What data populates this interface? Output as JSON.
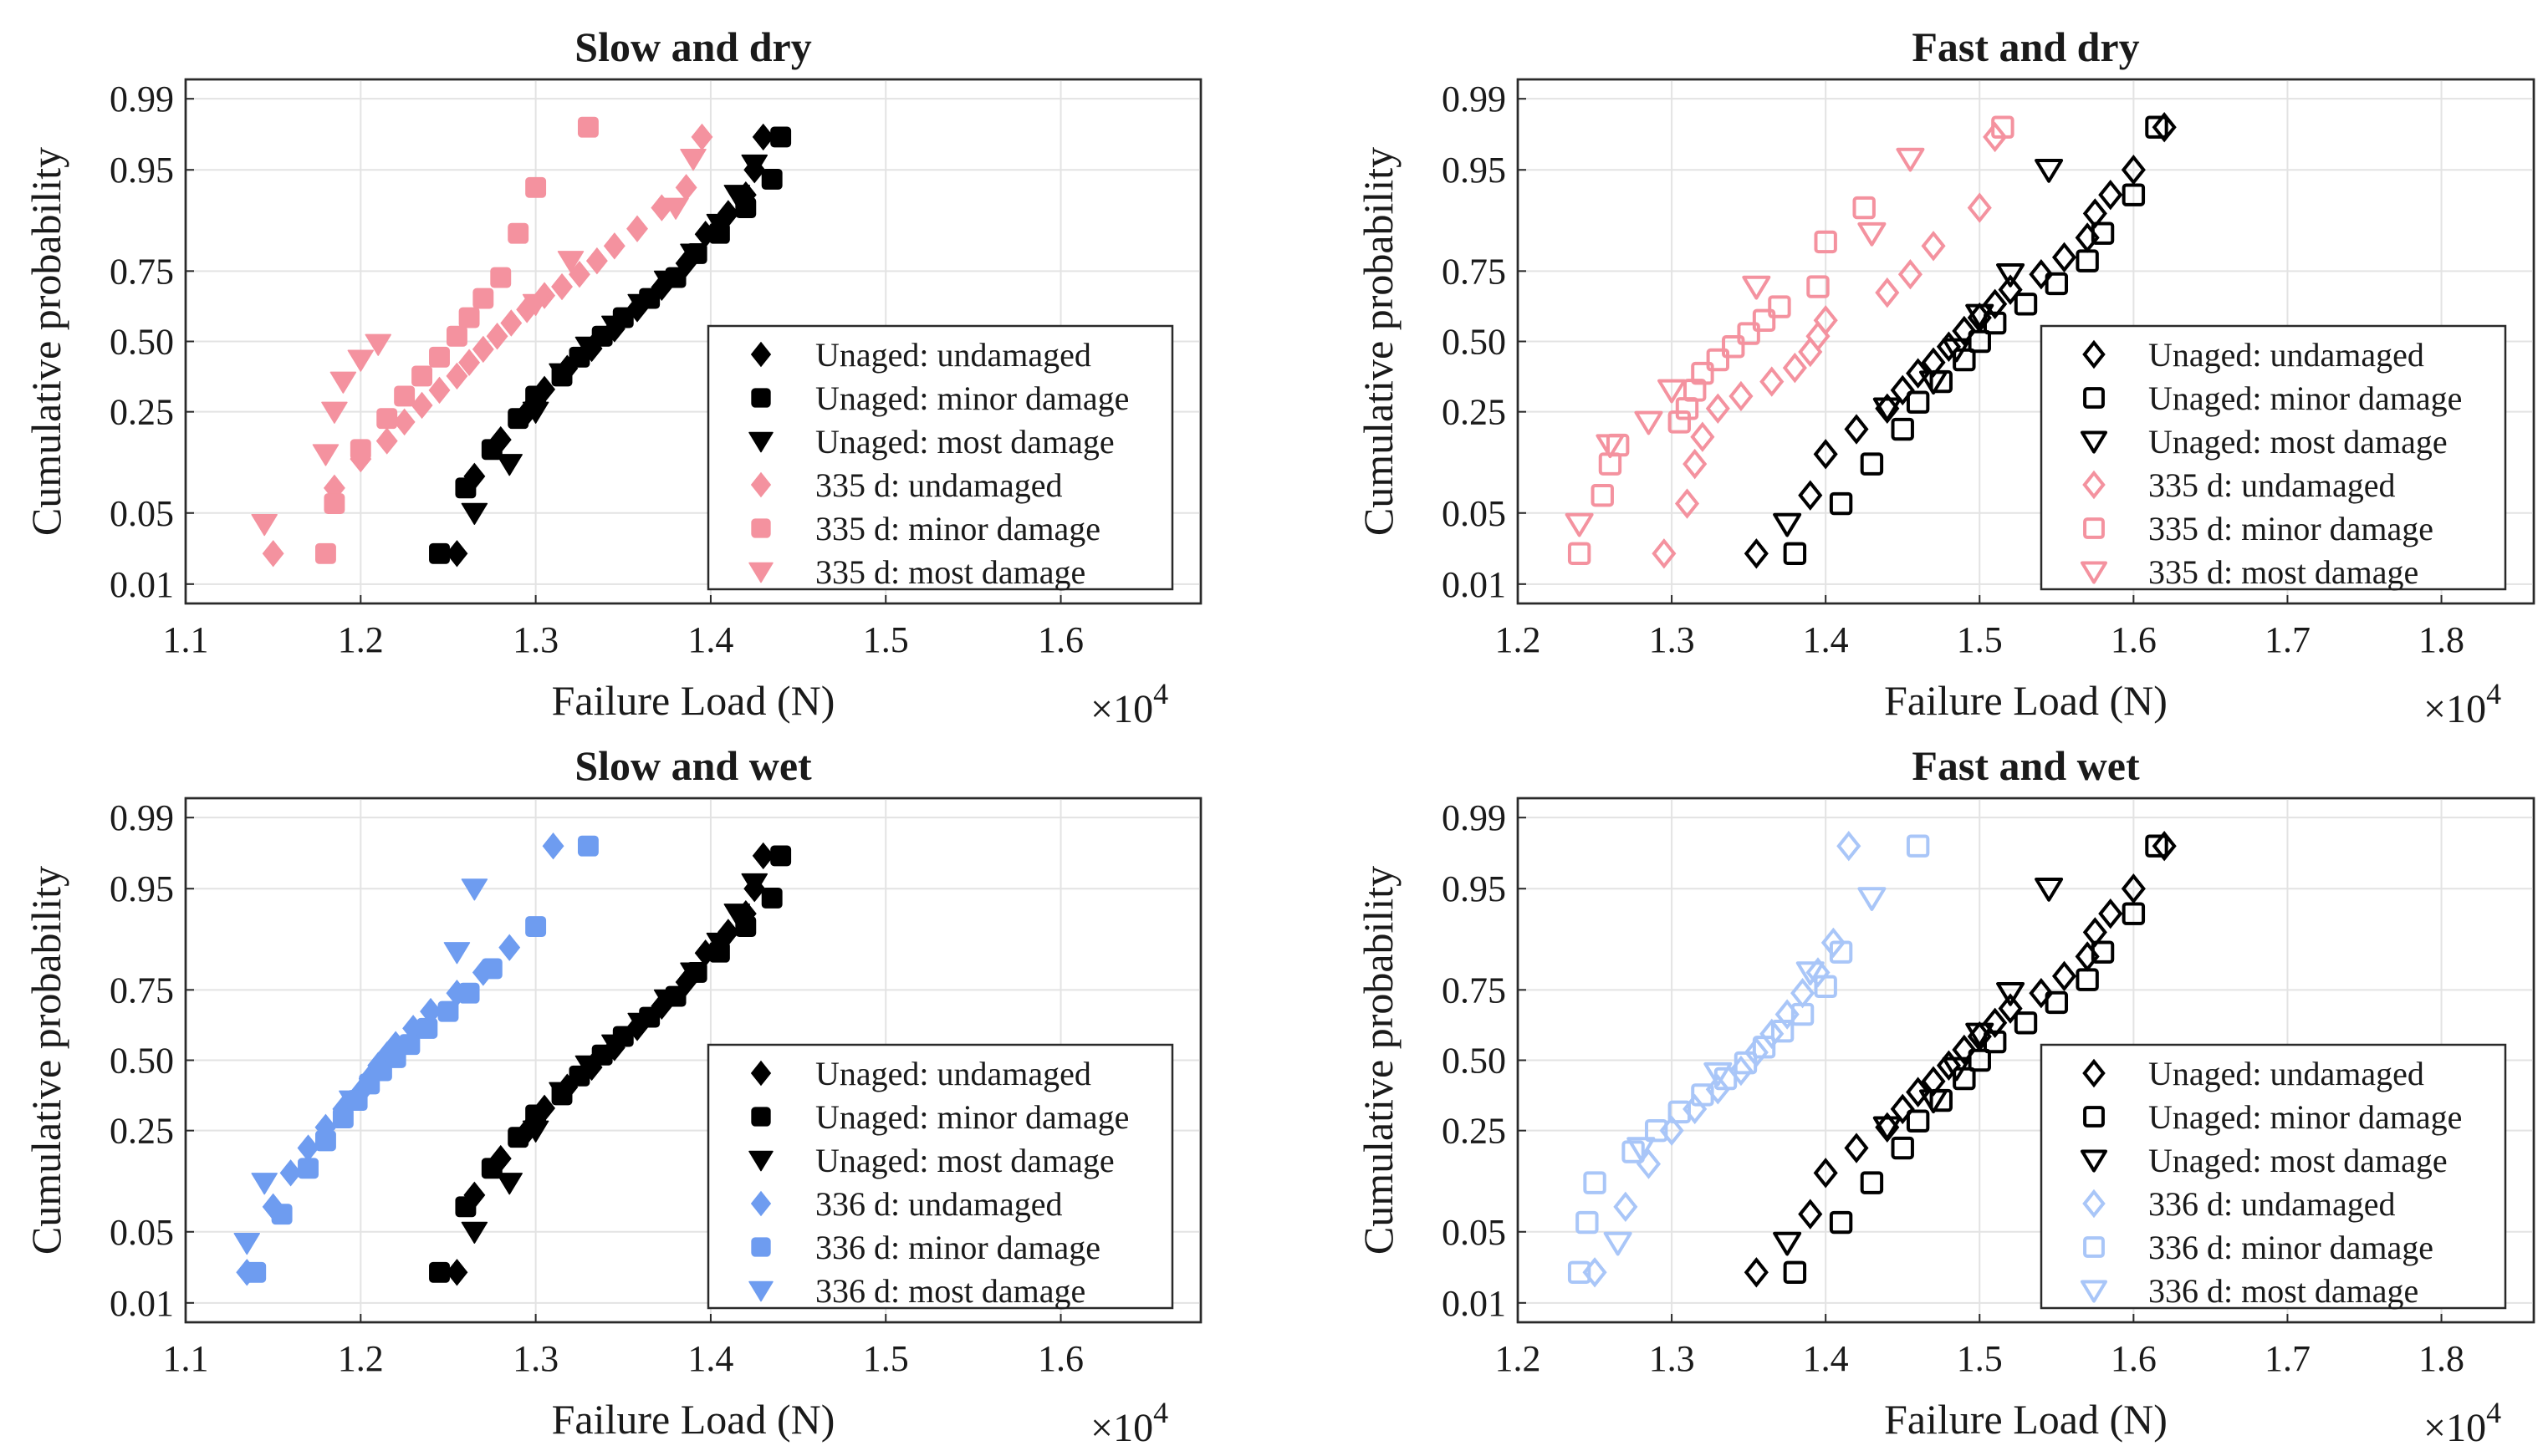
{
  "figure": {
    "multiplier_base": "×10",
    "multiplier_exp": "4"
  },
  "chart_data": [
    {
      "type": "scatter",
      "title": "Slow and dry",
      "xlabel": "Failure Load (N)",
      "ylabel": "Cumulative probability",
      "xlim": [
        1.1,
        1.68
      ],
      "xticks": [
        "1.1",
        "1.2",
        "1.3",
        "1.4",
        "1.5",
        "1.6"
      ],
      "yticks": [
        "0.01",
        "0.05",
        "0.25",
        "0.50",
        "0.75",
        "0.95",
        "0.99"
      ],
      "multiplier": "×10^4",
      "legend_position": "lower-right",
      "filled": true,
      "series": [
        {
          "name": "Unaged: undamaged",
          "color": "#000000",
          "marker": "diamond",
          "x": [
            1.255,
            1.265,
            1.28,
            1.295,
            1.305,
            1.318,
            1.332,
            1.345,
            1.358,
            1.372,
            1.386,
            1.397,
            1.41,
            1.42,
            1.425,
            1.43
          ],
          "y": [
            0.021,
            0.098,
            0.173,
            0.248,
            0.323,
            0.398,
            0.473,
            0.548,
            0.623,
            0.698,
            0.773,
            0.848,
            0.89,
            0.92,
            0.95,
            0.975
          ]
        },
        {
          "name": "Unaged: minor damage",
          "color": "#000000",
          "marker": "square",
          "x": [
            1.245,
            1.26,
            1.275,
            1.29,
            1.3,
            1.315,
            1.325,
            1.338,
            1.35,
            1.365,
            1.38,
            1.392,
            1.405,
            1.42,
            1.435,
            1.44
          ],
          "y": [
            0.021,
            0.08,
            0.15,
            0.23,
            0.3,
            0.37,
            0.44,
            0.52,
            0.59,
            0.66,
            0.73,
            0.8,
            0.85,
            0.9,
            0.94,
            0.975
          ]
        },
        {
          "name": "Unaged: most damage",
          "color": "#000000",
          "marker": "triangle-down",
          "x": [
            1.265,
            1.285,
            1.3,
            1.315,
            1.33,
            1.345,
            1.36,
            1.375,
            1.39,
            1.405,
            1.415,
            1.425
          ],
          "y": [
            0.05,
            0.12,
            0.25,
            0.38,
            0.48,
            0.56,
            0.64,
            0.72,
            0.8,
            0.87,
            0.92,
            0.955
          ]
        },
        {
          "name": "335 d: undamaged",
          "color": "#f4929f",
          "marker": "diamond",
          "x": [
            1.15,
            1.185,
            1.2,
            1.215,
            1.225,
            1.235,
            1.245,
            1.255,
            1.262,
            1.27,
            1.278,
            1.286,
            1.295,
            1.305,
            1.315,
            1.325,
            1.335,
            1.345,
            1.358,
            1.372,
            1.386,
            1.395
          ],
          "y": [
            0.021,
            0.08,
            0.13,
            0.17,
            0.22,
            0.27,
            0.32,
            0.37,
            0.42,
            0.47,
            0.52,
            0.57,
            0.62,
            0.67,
            0.7,
            0.74,
            0.78,
            0.82,
            0.86,
            0.9,
            0.93,
            0.975
          ]
        },
        {
          "name": "335 d: minor damage",
          "color": "#f4929f",
          "marker": "square",
          "x": [
            1.18,
            1.185,
            1.2,
            1.215,
            1.225,
            1.235,
            1.245,
            1.255,
            1.262,
            1.27,
            1.28,
            1.29,
            1.3,
            1.33
          ],
          "y": [
            0.021,
            0.06,
            0.15,
            0.23,
            0.3,
            0.37,
            0.44,
            0.52,
            0.59,
            0.66,
            0.73,
            0.85,
            0.93,
            0.98
          ]
        },
        {
          "name": "335 d: most damage",
          "color": "#f4929f",
          "marker": "triangle-down",
          "x": [
            1.145,
            1.18,
            1.185,
            1.19,
            1.2,
            1.21,
            1.3,
            1.32,
            1.38,
            1.39
          ],
          "y": [
            0.04,
            0.14,
            0.25,
            0.35,
            0.43,
            0.49,
            0.64,
            0.78,
            0.9,
            0.96
          ]
        }
      ]
    },
    {
      "type": "scatter",
      "title": "Fast and dry",
      "xlabel": "Failure Load (N)",
      "ylabel": "Cumulative probability",
      "xlim": [
        1.2,
        1.86
      ],
      "xticks": [
        "1.2",
        "1.3",
        "1.4",
        "1.5",
        "1.6",
        "1.7",
        "1.8"
      ],
      "yticks": [
        "0.01",
        "0.05",
        "0.25",
        "0.50",
        "0.75",
        "0.95",
        "0.99"
      ],
      "multiplier": "×10^4",
      "legend_position": "lower-right",
      "filled": false,
      "series": [
        {
          "name": "Unaged: undamaged",
          "color": "#000000",
          "marker": "diamond",
          "x": [
            1.355,
            1.39,
            1.4,
            1.42,
            1.44,
            1.45,
            1.46,
            1.47,
            1.48,
            1.49,
            1.5,
            1.51,
            1.52,
            1.54,
            1.555,
            1.57,
            1.575,
            1.585,
            1.6,
            1.62
          ],
          "y": [
            0.021,
            0.07,
            0.14,
            0.2,
            0.26,
            0.32,
            0.38,
            0.42,
            0.48,
            0.54,
            0.59,
            0.64,
            0.69,
            0.74,
            0.79,
            0.84,
            0.89,
            0.92,
            0.95,
            0.98
          ]
        },
        {
          "name": "Unaged: minor damage",
          "color": "#000000",
          "marker": "square",
          "x": [
            1.38,
            1.41,
            1.43,
            1.45,
            1.46,
            1.475,
            1.49,
            1.5,
            1.51,
            1.53,
            1.55,
            1.57,
            1.58,
            1.6,
            1.615
          ],
          "y": [
            0.021,
            0.06,
            0.12,
            0.2,
            0.28,
            0.35,
            0.43,
            0.5,
            0.57,
            0.64,
            0.71,
            0.78,
            0.85,
            0.92,
            0.98
          ]
        },
        {
          "name": "Unaged: most damage",
          "color": "#000000",
          "marker": "triangle-down",
          "x": [
            1.375,
            1.44,
            1.47,
            1.485,
            1.5,
            1.52,
            1.545
          ],
          "y": [
            0.04,
            0.26,
            0.35,
            0.47,
            0.6,
            0.74,
            0.95
          ]
        },
        {
          "name": "335 d: undamaged",
          "color": "#f4929f",
          "marker": "diamond",
          "x": [
            1.295,
            1.31,
            1.315,
            1.32,
            1.33,
            1.345,
            1.365,
            1.38,
            1.39,
            1.395,
            1.4,
            1.44,
            1.455,
            1.47,
            1.5,
            1.51
          ],
          "y": [
            0.021,
            0.06,
            0.12,
            0.18,
            0.26,
            0.3,
            0.35,
            0.4,
            0.46,
            0.52,
            0.58,
            0.68,
            0.74,
            0.82,
            0.9,
            0.975
          ]
        },
        {
          "name": "335 d: minor damage",
          "color": "#f4929f",
          "marker": "square",
          "x": [
            1.24,
            1.255,
            1.26,
            1.265,
            1.305,
            1.31,
            1.315,
            1.32,
            1.33,
            1.34,
            1.35,
            1.36,
            1.37,
            1.395,
            1.4,
            1.425,
            1.515
          ],
          "y": [
            0.021,
            0.07,
            0.12,
            0.16,
            0.22,
            0.26,
            0.32,
            0.38,
            0.43,
            0.48,
            0.53,
            0.58,
            0.63,
            0.7,
            0.83,
            0.9,
            0.98
          ]
        },
        {
          "name": "335 d: most damage",
          "color": "#f4929f",
          "marker": "triangle-down",
          "x": [
            1.24,
            1.26,
            1.285,
            1.3,
            1.355,
            1.43,
            1.455
          ],
          "y": [
            0.04,
            0.16,
            0.22,
            0.32,
            0.7,
            0.85,
            0.96
          ]
        }
      ]
    },
    {
      "type": "scatter",
      "title": "Slow and wet",
      "xlabel": "Failure Load (N)",
      "ylabel": "Cumulative probability",
      "xlim": [
        1.1,
        1.68
      ],
      "xticks": [
        "1.1",
        "1.2",
        "1.3",
        "1.4",
        "1.5",
        "1.6"
      ],
      "yticks": [
        "0.01",
        "0.05",
        "0.25",
        "0.50",
        "0.75",
        "0.95",
        "0.99"
      ],
      "multiplier": "×10^4",
      "legend_position": "lower-right",
      "filled": true,
      "series": [
        {
          "name": "Unaged: undamaged",
          "color": "#000000",
          "marker": "diamond",
          "x": [
            1.255,
            1.265,
            1.28,
            1.295,
            1.305,
            1.318,
            1.332,
            1.345,
            1.358,
            1.372,
            1.386,
            1.397,
            1.41,
            1.42,
            1.425,
            1.43
          ],
          "y": [
            0.021,
            0.098,
            0.173,
            0.248,
            0.323,
            0.398,
            0.473,
            0.548,
            0.623,
            0.698,
            0.773,
            0.848,
            0.89,
            0.92,
            0.95,
            0.975
          ]
        },
        {
          "name": "Unaged: minor damage",
          "color": "#000000",
          "marker": "square",
          "x": [
            1.245,
            1.26,
            1.275,
            1.29,
            1.3,
            1.315,
            1.325,
            1.338,
            1.35,
            1.365,
            1.38,
            1.392,
            1.405,
            1.42,
            1.435,
            1.44
          ],
          "y": [
            0.021,
            0.08,
            0.15,
            0.23,
            0.3,
            0.37,
            0.44,
            0.52,
            0.59,
            0.66,
            0.73,
            0.8,
            0.85,
            0.9,
            0.94,
            0.975
          ]
        },
        {
          "name": "Unaged: most damage",
          "color": "#000000",
          "marker": "triangle-down",
          "x": [
            1.265,
            1.285,
            1.3,
            1.315,
            1.33,
            1.345,
            1.36,
            1.375,
            1.39,
            1.405,
            1.415,
            1.425
          ],
          "y": [
            0.05,
            0.12,
            0.25,
            0.38,
            0.48,
            0.56,
            0.64,
            0.72,
            0.8,
            0.87,
            0.92,
            0.955
          ]
        },
        {
          "name": "336 d: undamaged",
          "color": "#6e9cf0",
          "marker": "diamond",
          "x": [
            1.135,
            1.15,
            1.16,
            1.17,
            1.18,
            1.19,
            1.2,
            1.205,
            1.21,
            1.215,
            1.22,
            1.23,
            1.24,
            1.255,
            1.27,
            1.285,
            1.31
          ],
          "y": [
            0.021,
            0.08,
            0.14,
            0.2,
            0.26,
            0.32,
            0.38,
            0.43,
            0.48,
            0.52,
            0.56,
            0.62,
            0.68,
            0.74,
            0.8,
            0.86,
            0.98
          ]
        },
        {
          "name": "336 d: minor damage",
          "color": "#6e9cf0",
          "marker": "square",
          "x": [
            1.14,
            1.155,
            1.17,
            1.18,
            1.19,
            1.198,
            1.205,
            1.212,
            1.22,
            1.228,
            1.238,
            1.25,
            1.262,
            1.275,
            1.3,
            1.33
          ],
          "y": [
            0.021,
            0.07,
            0.15,
            0.22,
            0.29,
            0.35,
            0.41,
            0.46,
            0.51,
            0.56,
            0.62,
            0.68,
            0.74,
            0.81,
            0.9,
            0.98
          ]
        },
        {
          "name": "336 d: most damage",
          "color": "#6e9cf0",
          "marker": "triangle-down",
          "x": [
            1.135,
            1.145,
            1.195,
            1.255,
            1.265
          ],
          "y": [
            0.04,
            0.12,
            0.35,
            0.85,
            0.95
          ]
        }
      ]
    },
    {
      "type": "scatter",
      "title": "Fast and wet",
      "xlabel": "Failure Load (N)",
      "ylabel": "Cumulative probability",
      "xlim": [
        1.2,
        1.86
      ],
      "xticks": [
        "1.2",
        "1.3",
        "1.4",
        "1.5",
        "1.6",
        "1.7",
        "1.8"
      ],
      "yticks": [
        "0.01",
        "0.05",
        "0.25",
        "0.50",
        "0.75",
        "0.95",
        "0.99"
      ],
      "multiplier": "×10^4",
      "legend_position": "lower-right",
      "filled": false,
      "series": [
        {
          "name": "Unaged: undamaged",
          "color": "#000000",
          "marker": "diamond",
          "x": [
            1.355,
            1.39,
            1.4,
            1.42,
            1.44,
            1.45,
            1.46,
            1.47,
            1.48,
            1.49,
            1.5,
            1.51,
            1.52,
            1.54,
            1.555,
            1.57,
            1.575,
            1.585,
            1.6,
            1.62
          ],
          "y": [
            0.021,
            0.07,
            0.14,
            0.2,
            0.26,
            0.32,
            0.38,
            0.42,
            0.48,
            0.54,
            0.59,
            0.64,
            0.69,
            0.74,
            0.79,
            0.84,
            0.89,
            0.92,
            0.95,
            0.98
          ]
        },
        {
          "name": "Unaged: minor damage",
          "color": "#000000",
          "marker": "square",
          "x": [
            1.38,
            1.41,
            1.43,
            1.45,
            1.46,
            1.475,
            1.49,
            1.5,
            1.51,
            1.53,
            1.55,
            1.57,
            1.58,
            1.6,
            1.615
          ],
          "y": [
            0.021,
            0.06,
            0.12,
            0.2,
            0.28,
            0.35,
            0.43,
            0.5,
            0.57,
            0.64,
            0.71,
            0.78,
            0.85,
            0.92,
            0.98
          ]
        },
        {
          "name": "Unaged: most damage",
          "color": "#000000",
          "marker": "triangle-down",
          "x": [
            1.375,
            1.44,
            1.47,
            1.485,
            1.5,
            1.52,
            1.545
          ],
          "y": [
            0.04,
            0.26,
            0.35,
            0.47,
            0.6,
            0.74,
            0.95
          ]
        },
        {
          "name": "336 d: undamaged",
          "color": "#a9c6f8",
          "marker": "diamond",
          "x": [
            1.25,
            1.27,
            1.285,
            1.3,
            1.315,
            1.33,
            1.345,
            1.355,
            1.365,
            1.375,
            1.385,
            1.395,
            1.405,
            1.415
          ],
          "y": [
            0.021,
            0.08,
            0.16,
            0.25,
            0.32,
            0.39,
            0.46,
            0.53,
            0.6,
            0.67,
            0.74,
            0.8,
            0.87,
            0.98
          ]
        },
        {
          "name": "336 d: minor damage",
          "color": "#a9c6f8",
          "marker": "square",
          "x": [
            1.24,
            1.245,
            1.25,
            1.275,
            1.29,
            1.305,
            1.32,
            1.335,
            1.348,
            1.36,
            1.372,
            1.385,
            1.4,
            1.41,
            1.46
          ],
          "y": [
            0.021,
            0.06,
            0.12,
            0.19,
            0.25,
            0.31,
            0.37,
            0.43,
            0.49,
            0.55,
            0.61,
            0.67,
            0.76,
            0.85,
            0.98
          ]
        },
        {
          "name": "336 d: most damage",
          "color": "#a9c6f8",
          "marker": "triangle-down",
          "x": [
            1.265,
            1.28,
            1.33,
            1.39,
            1.43
          ],
          "y": [
            0.04,
            0.2,
            0.45,
            0.8,
            0.94
          ]
        }
      ]
    }
  ]
}
